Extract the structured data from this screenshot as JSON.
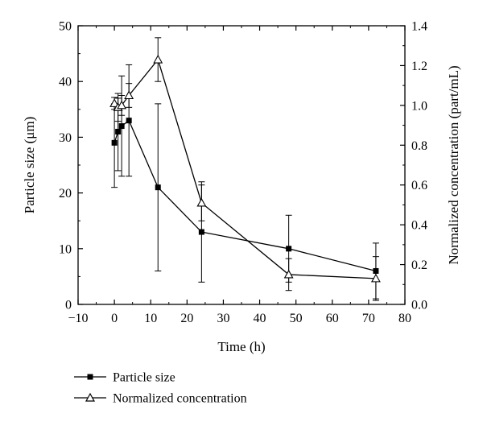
{
  "chart_data": {
    "type": "line",
    "xlabel": "Time (h)",
    "ylabel_left": "Particle size (μm)",
    "ylabel_right": "Normalized concentration (part/mL)",
    "xlim": [
      -10,
      80
    ],
    "xticks": [
      -10,
      0,
      10,
      20,
      30,
      40,
      50,
      60,
      70,
      80
    ],
    "ylim_left": [
      0,
      50
    ],
    "yticks_left": [
      0,
      10,
      20,
      30,
      40,
      50
    ],
    "ylim_right": [
      0,
      1.4
    ],
    "yticks_right": [
      "0.0",
      "0.2",
      "0.4",
      "0.6",
      "0.8",
      "1.0",
      "1.2",
      "1.4"
    ],
    "grid": false,
    "legend_position": "bottom-left",
    "series": [
      {
        "name": "Particle size",
        "axis": "left",
        "marker": "filled-square",
        "x": [
          0,
          1,
          2,
          4,
          12,
          24,
          48,
          72
        ],
        "y": [
          29,
          31,
          32,
          33,
          21,
          13,
          10,
          6
        ],
        "err_low": [
          8,
          7,
          9,
          10,
          15,
          9,
          6,
          5
        ],
        "err_high": [
          7,
          6,
          9,
          10,
          15,
          9,
          6,
          5
        ]
      },
      {
        "name": "Normalized concentration",
        "axis": "right",
        "marker": "open-triangle",
        "x": [
          0,
          1,
          2,
          4,
          12,
          24,
          48,
          72
        ],
        "y": [
          1.01,
          0.99,
          1.0,
          1.05,
          1.23,
          0.51,
          0.15,
          0.13
        ],
        "err_low": [
          0.03,
          0.07,
          0.05,
          0.06,
          0.11,
          0.09,
          0.08,
          0.11
        ],
        "err_high": [
          0.03,
          0.07,
          0.05,
          0.06,
          0.11,
          0.09,
          0.08,
          0.11
        ]
      }
    ]
  }
}
